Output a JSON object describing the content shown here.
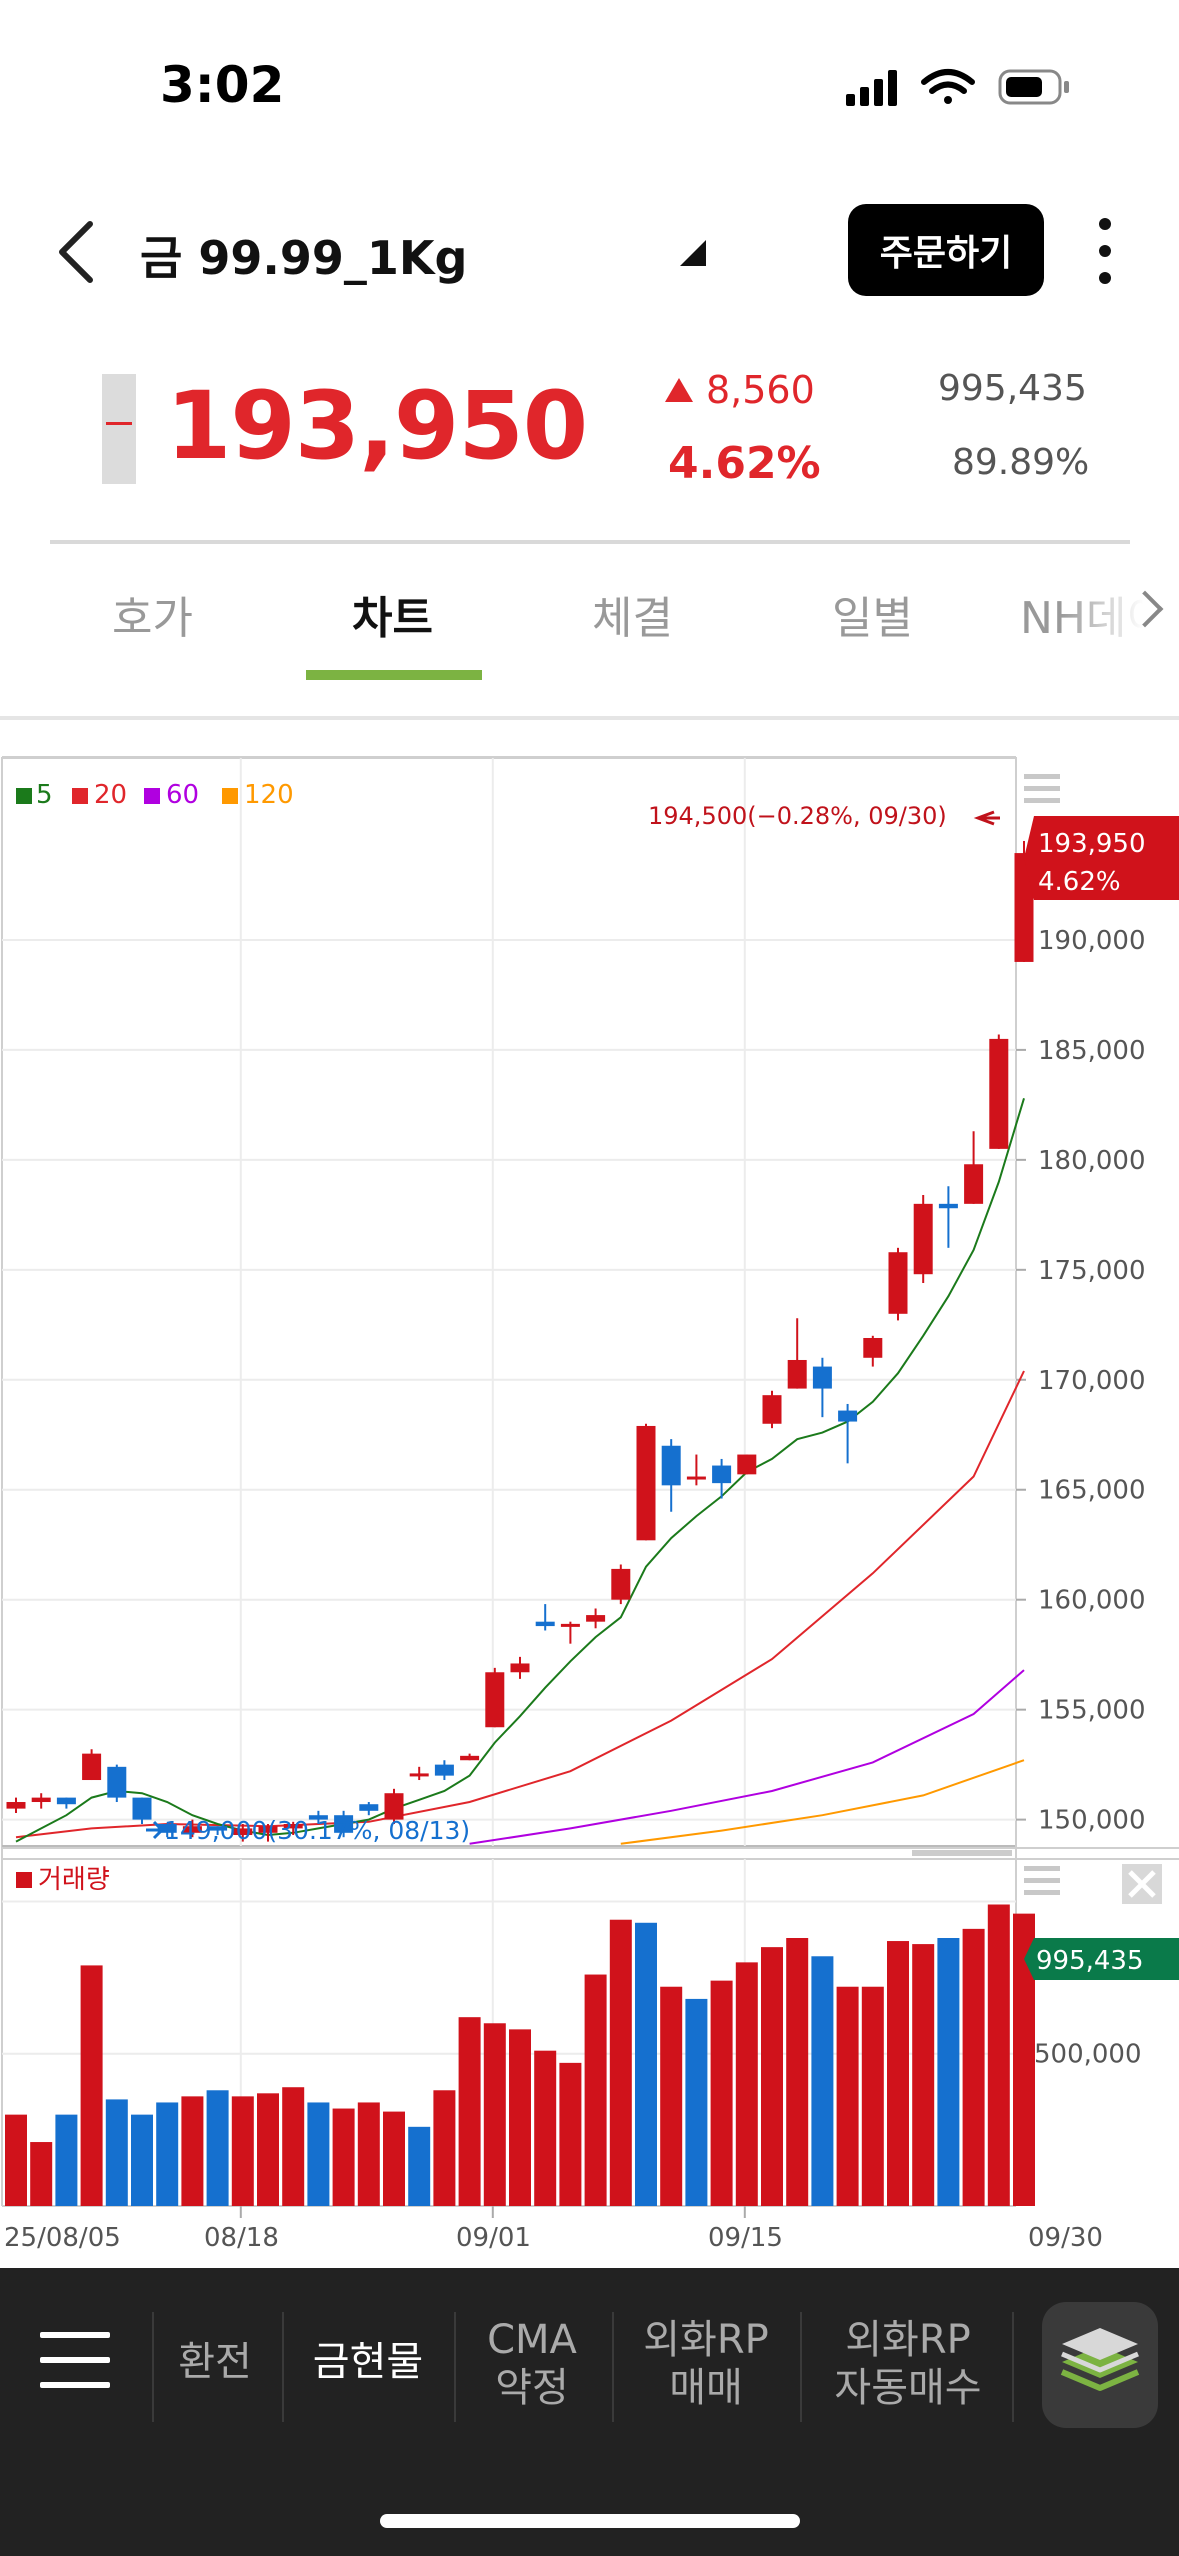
{
  "status_bar": {
    "time": "3:02"
  },
  "header": {
    "title": "금 99.99_1Kg",
    "order_button": "주문하기"
  },
  "quote": {
    "price": "193,950",
    "change": "8,560",
    "change_pct": "4.62%",
    "volume": "995,435",
    "volume_pct": "89.89%"
  },
  "tabs": [
    {
      "label": "호가"
    },
    {
      "label": "차트"
    },
    {
      "label": "체결"
    },
    {
      "label": "일별"
    },
    {
      "label": "NH데이"
    }
  ],
  "chart_data": {
    "type": "candlestick",
    "legend": [
      "5",
      "20",
      "60",
      "120"
    ],
    "ma_colors": {
      "5": "#1b7a1b",
      "20": "#e0262b",
      "60": "#b000e0",
      "120": "#ff9900"
    },
    "colors": {
      "up": "#d0121b",
      "down": "#1570cf",
      "volume_badge": "#0a7a4a"
    },
    "x_ticks": [
      "25/08/05",
      "08/18",
      "09/01",
      "09/15",
      "09/30"
    ],
    "y_ticks": [
      "190,000",
      "185,000",
      "180,000",
      "175,000",
      "170,000",
      "165,000",
      "160,000",
      "155,000",
      "150,000"
    ],
    "y_tick_values": [
      190000,
      185000,
      180000,
      175000,
      170000,
      165000,
      160000,
      155000,
      150000
    ],
    "ylim": [
      148800,
      197000
    ],
    "max_label": "194,500(−0.28%, 09/30)",
    "min_label": "149,000(30.17%, 08/13)",
    "last_price": "193,950",
    "last_pct": "4.62%",
    "candles": [
      [
        150500,
        151000,
        150300,
        150800
      ],
      [
        150800,
        151200,
        150500,
        151000
      ],
      [
        151000,
        151000,
        150500,
        150700
      ],
      [
        151800,
        153200,
        151800,
        153000
      ],
      [
        152400,
        152500,
        150800,
        151000
      ],
      [
        151000,
        151000,
        149800,
        150000
      ],
      [
        149800,
        149800,
        149200,
        149400
      ],
      [
        149400,
        150000,
        149200,
        149700
      ],
      [
        149700,
        149700,
        149300,
        149500
      ],
      [
        149300,
        149800,
        149000,
        149600
      ],
      [
        149400,
        149800,
        149000,
        149700
      ],
      [
        149600,
        149900,
        149300,
        149800
      ],
      [
        150200,
        150400,
        149800,
        150000
      ],
      [
        150200,
        150400,
        149200,
        149400
      ],
      [
        150700,
        150800,
        150200,
        150400
      ],
      [
        150000,
        151400,
        149800,
        151200
      ],
      [
        152000,
        152400,
        151800,
        152100
      ],
      [
        152500,
        152700,
        151800,
        152000
      ],
      [
        152700,
        153000,
        152700,
        152900
      ],
      [
        154200,
        156900,
        154200,
        156700
      ],
      [
        156700,
        157400,
        156400,
        157100
      ],
      [
        159000,
        159800,
        158600,
        158800
      ],
      [
        158800,
        159000,
        158000,
        158900
      ],
      [
        159000,
        159600,
        158700,
        159300
      ],
      [
        160000,
        161600,
        159800,
        161400
      ],
      [
        162700,
        168000,
        162700,
        167900
      ],
      [
        167000,
        167300,
        164000,
        165200
      ],
      [
        165600,
        166600,
        165200,
        165600
      ],
      [
        166100,
        166400,
        164600,
        165300
      ],
      [
        165700,
        166600,
        165700,
        166600
      ],
      [
        168000,
        169500,
        167800,
        169300
      ],
      [
        169600,
        172800,
        169600,
        170900
      ],
      [
        170600,
        171000,
        168300,
        169600
      ],
      [
        168600,
        168900,
        166200,
        168100
      ],
      [
        171000,
        172000,
        170600,
        171900
      ],
      [
        173000,
        176000,
        172700,
        175800
      ],
      [
        174800,
        178400,
        174400,
        178000
      ],
      [
        178000,
        178800,
        176000,
        177800
      ],
      [
        178000,
        181300,
        178000,
        179800
      ],
      [
        180500,
        185700,
        180500,
        185500
      ],
      [
        189000,
        194500,
        189000,
        193950
      ]
    ],
    "volumes": [
      [
        300000,
        1
      ],
      [
        210000,
        1
      ],
      [
        300000,
        0
      ],
      [
        790000,
        1
      ],
      [
        350000,
        0
      ],
      [
        300000,
        0
      ],
      [
        340000,
        0
      ],
      [
        360000,
        1
      ],
      [
        380000,
        0
      ],
      [
        360000,
        1
      ],
      [
        370000,
        1
      ],
      [
        390000,
        1
      ],
      [
        340000,
        0
      ],
      [
        320000,
        1
      ],
      [
        340000,
        1
      ],
      [
        310000,
        1
      ],
      [
        260000,
        0
      ],
      [
        380000,
        1
      ],
      [
        620000,
        1
      ],
      [
        600000,
        1
      ],
      [
        580000,
        1
      ],
      [
        510000,
        1
      ],
      [
        470000,
        1
      ],
      [
        760000,
        1
      ],
      [
        940000,
        1
      ],
      [
        930000,
        0
      ],
      [
        720000,
        1
      ],
      [
        680000,
        0
      ],
      [
        740000,
        1
      ],
      [
        800000,
        1
      ],
      [
        850000,
        1
      ],
      [
        880000,
        1
      ],
      [
        820000,
        0
      ],
      [
        720000,
        1
      ],
      [
        720000,
        1
      ],
      [
        870000,
        1
      ],
      [
        860000,
        1
      ],
      [
        880000,
        0
      ],
      [
        910000,
        1
      ],
      [
        990000,
        1
      ],
      [
        960000,
        1
      ]
    ],
    "volume_series_name": "거래량",
    "volume_badge": "995,435",
    "volume_tick": "500,000",
    "volume_tick_value": 500000,
    "volume_max": 1100000,
    "ma": {
      "5": [
        [
          0,
          149000
        ],
        [
          1,
          149600
        ],
        [
          2,
          150200
        ],
        [
          3,
          151000
        ],
        [
          4,
          151300
        ],
        [
          5,
          151200
        ],
        [
          6,
          150800
        ],
        [
          7,
          150200
        ],
        [
          8,
          149800
        ],
        [
          9,
          149500
        ],
        [
          10,
          149300
        ],
        [
          11,
          149400
        ],
        [
          12,
          149600
        ],
        [
          13,
          149800
        ],
        [
          14,
          150000
        ],
        [
          15,
          150500
        ],
        [
          16,
          150900
        ],
        [
          17,
          151300
        ],
        [
          18,
          152000
        ],
        [
          19,
          153500
        ],
        [
          20,
          154700
        ],
        [
          21,
          156000
        ],
        [
          22,
          157200
        ],
        [
          23,
          158300
        ],
        [
          24,
          159200
        ],
        [
          25,
          161500
        ],
        [
          26,
          162800
        ],
        [
          27,
          163800
        ],
        [
          28,
          164700
        ],
        [
          29,
          165800
        ],
        [
          30,
          166400
        ],
        [
          31,
          167300
        ],
        [
          32,
          167600
        ],
        [
          33,
          168100
        ],
        [
          34,
          169000
        ],
        [
          35,
          170300
        ],
        [
          36,
          172000
        ],
        [
          37,
          173800
        ],
        [
          38,
          175900
        ],
        [
          39,
          179000
        ],
        [
          40,
          182800
        ]
      ],
      "20": [
        [
          0,
          149200
        ],
        [
          3,
          149600
        ],
        [
          6,
          149800
        ],
        [
          10,
          149700
        ],
        [
          14,
          149900
        ],
        [
          18,
          150800
        ],
        [
          22,
          152200
        ],
        [
          26,
          154500
        ],
        [
          30,
          157300
        ],
        [
          34,
          161200
        ],
        [
          38,
          165600
        ],
        [
          40,
          170400
        ]
      ],
      "60": [
        [
          18,
          148900
        ],
        [
          22,
          149600
        ],
        [
          26,
          150400
        ],
        [
          30,
          151300
        ],
        [
          34,
          152600
        ],
        [
          38,
          154800
        ],
        [
          40,
          156800
        ]
      ],
      "120": [
        [
          24,
          148900
        ],
        [
          28,
          149500
        ],
        [
          32,
          150200
        ],
        [
          36,
          151100
        ],
        [
          40,
          152700
        ]
      ]
    }
  },
  "bottom_nav": [
    {
      "label": "환전"
    },
    {
      "label": "금현물"
    },
    {
      "label": "CMA\n약정"
    },
    {
      "label": "외화RP\n매매"
    },
    {
      "label": "외화RP\n자동매수"
    }
  ]
}
